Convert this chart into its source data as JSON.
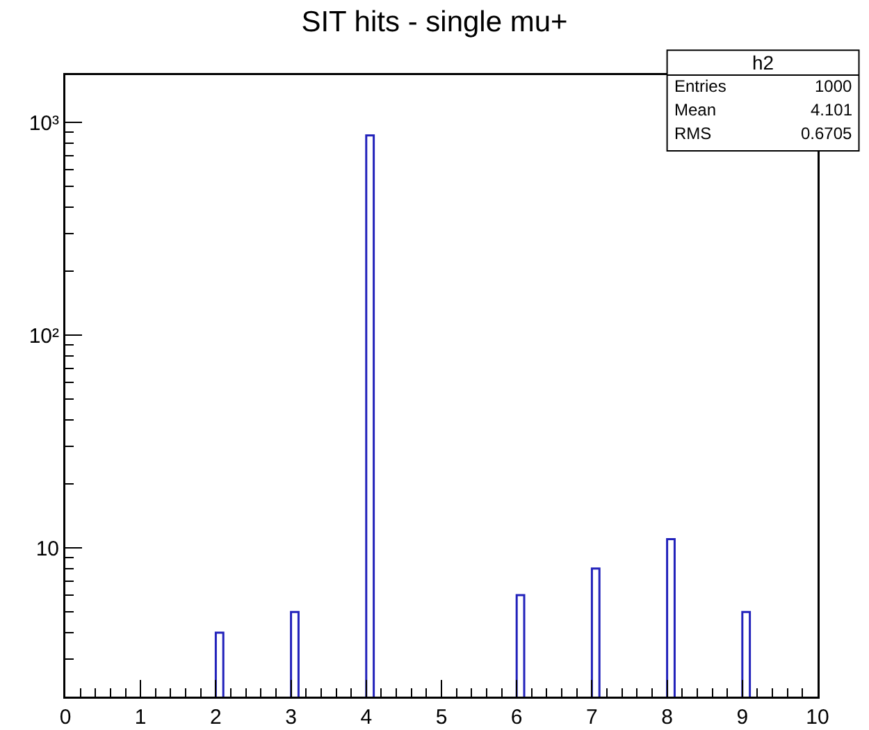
{
  "chart_data": {
    "type": "histogram",
    "title": "SIT hits - single mu+",
    "bins": [
      0,
      0.1,
      0.2,
      0.3,
      0.4,
      0.5,
      0.6,
      0.7,
      0.8,
      0.9,
      1,
      1.1,
      1.2,
      1.3,
      1.4,
      1.5,
      1.6,
      1.7,
      1.8,
      1.9,
      2,
      2.1,
      2.2,
      2.3,
      2.4,
      2.5,
      2.6,
      2.7,
      2.8,
      2.9,
      3,
      3.1,
      3.2,
      3.3,
      3.4,
      3.5,
      3.6,
      3.7,
      3.8,
      3.9,
      4,
      4.1,
      4.2,
      4.3,
      4.4,
      4.5,
      4.6,
      4.7,
      4.8,
      4.9,
      5,
      5.1,
      5.2,
      5.3,
      5.4,
      5.5,
      5.6,
      5.7,
      5.8,
      5.9,
      6,
      6.1,
      6.2,
      6.3,
      6.4,
      6.5,
      6.6,
      6.7,
      6.8,
      6.9,
      7,
      7.1,
      7.2,
      7.3,
      7.4,
      7.5,
      7.6,
      7.7,
      7.8,
      7.9,
      8,
      8.1,
      8.2,
      8.3,
      8.4,
      8.5,
      8.6,
      8.7,
      8.8,
      8.9,
      9,
      9.1,
      9.2,
      9.3,
      9.4,
      9.5,
      9.6,
      9.7,
      9.8,
      9.9,
      10
    ],
    "values": [
      null,
      null,
      null,
      null,
      null,
      null,
      null,
      null,
      null,
      null,
      null,
      null,
      null,
      null,
      null,
      null,
      null,
      null,
      null,
      null,
      4,
      null,
      null,
      null,
      null,
      null,
      null,
      null,
      null,
      null,
      5,
      null,
      null,
      null,
      null,
      null,
      null,
      null,
      null,
      null,
      870,
      null,
      null,
      null,
      null,
      null,
      null,
      null,
      null,
      null,
      null,
      null,
      null,
      null,
      null,
      null,
      null,
      null,
      null,
      null,
      6,
      null,
      null,
      null,
      null,
      null,
      null,
      null,
      null,
      null,
      8,
      null,
      null,
      null,
      null,
      null,
      null,
      null,
      null,
      null,
      11,
      null,
      null,
      null,
      null,
      null,
      null,
      null,
      null,
      null,
      5,
      null,
      null,
      null,
      null,
      null,
      null,
      null,
      null,
      null
    ],
    "color": "#2222bb",
    "log": "y",
    "xlim": [
      0,
      10
    ],
    "xticks": [
      0,
      1,
      2,
      3,
      4,
      5,
      6,
      7,
      8,
      9,
      10
    ],
    "ylim": [
      2,
      1670
    ],
    "yticks": [
      {
        "value": 10,
        "label": "10"
      },
      {
        "value": 100,
        "label": "10²"
      },
      {
        "value": 1000,
        "label": "10³"
      }
    ],
    "grid": false,
    "annotations": [
      "h2",
      "Entries 1000",
      "Mean 4.101",
      "RMS 0.6705"
    ]
  }
}
